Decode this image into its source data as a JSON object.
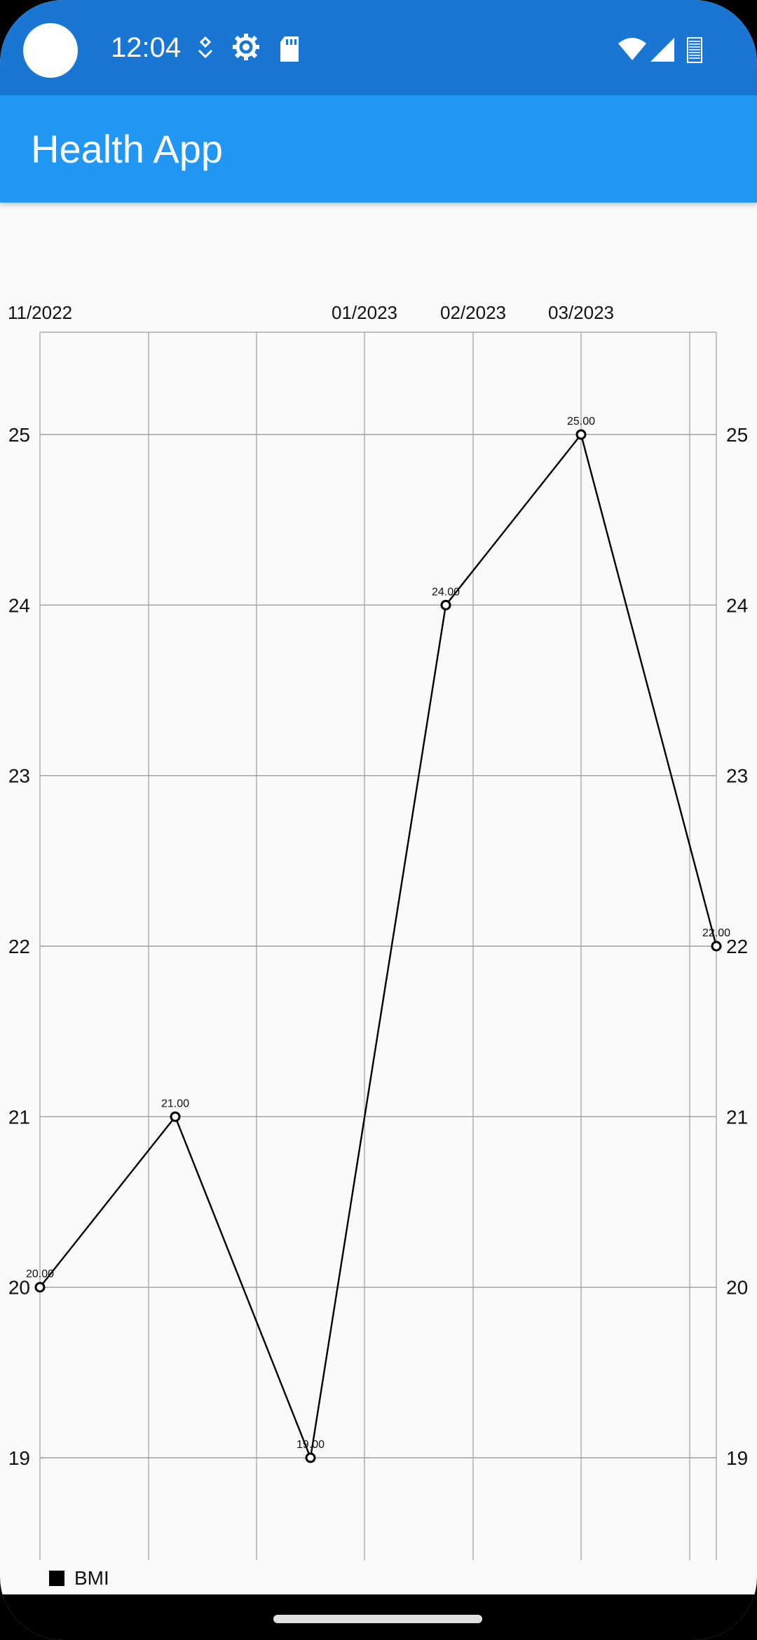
{
  "status_bar": {
    "time": "12:04",
    "icons": [
      "camera-cutout",
      "pulse-icon",
      "settings-gear-icon",
      "sd-card-icon",
      "wifi-icon",
      "cell-signal-icon",
      "battery-icon"
    ]
  },
  "app_bar": {
    "title": "Health App"
  },
  "legend": {
    "label": "BMI"
  },
  "colors": {
    "status_bar": "#1976d2",
    "app_bar": "#2196f3",
    "series": "#000000",
    "grid": "#9e9e9e"
  },
  "chart_data": {
    "type": "line",
    "x_tick_labels": [
      "11/2022",
      "01/2023",
      "02/2023",
      "03/2023"
    ],
    "y_ticks": [
      19,
      20,
      21,
      22,
      23,
      24,
      25
    ],
    "ylim": [
      18.4,
      25.6
    ],
    "grid": true,
    "y_axis_both_sides": true,
    "legend_placement": "bottom-left",
    "series": [
      {
        "name": "BMI",
        "values": [
          20,
          21,
          19,
          24,
          25,
          22
        ],
        "labels": [
          "20.00",
          "21.00",
          "19.00",
          "24.00",
          "25.00",
          "22.00"
        ]
      }
    ]
  }
}
